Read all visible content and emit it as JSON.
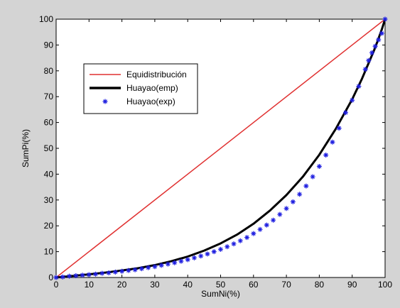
{
  "chart_data": {
    "type": "line",
    "title": "",
    "xlabel": "SumNi(%)",
    "ylabel": "SumPi(%)",
    "xlim": [
      0,
      100
    ],
    "ylim": [
      0,
      100
    ],
    "xticks": [
      "0",
      "10",
      "20",
      "30",
      "40",
      "50",
      "60",
      "70",
      "80",
      "90",
      "100"
    ],
    "yticks": [
      "0",
      "10",
      "20",
      "30",
      "40",
      "50",
      "60",
      "70",
      "80",
      "90",
      "100"
    ],
    "grid": false,
    "legend_position": "top-left",
    "series": [
      {
        "name": "Equidistribución",
        "style": "line",
        "color": "#e03030",
        "x": [
          0,
          100
        ],
        "y": [
          0,
          100
        ]
      },
      {
        "name": "Huayao(emp)",
        "style": "thick-line",
        "color": "#000000",
        "x": [
          0,
          5,
          10,
          15,
          20,
          25,
          30,
          35,
          40,
          45,
          50,
          55,
          60,
          65,
          70,
          75,
          80,
          85,
          90,
          93,
          95,
          97,
          98,
          99,
          100
        ],
        "y": [
          0,
          0.6,
          1.2,
          1.9,
          2.7,
          3.6,
          4.8,
          6.3,
          8.1,
          10.4,
          13.2,
          16.6,
          20.8,
          25.9,
          31.9,
          39.0,
          47.5,
          57.5,
          69.0,
          77.0,
          83.0,
          89.0,
          92.5,
          96.0,
          100
        ]
      },
      {
        "name": "Huayao(exp)",
        "style": "markers",
        "color": "#1f1fe0",
        "marker": "star",
        "x": [
          0,
          2,
          4,
          6,
          8,
          10,
          12,
          14,
          16,
          18,
          20,
          22,
          24,
          26,
          28,
          30,
          32,
          34,
          36,
          38,
          40,
          42,
          44,
          46,
          48,
          50,
          52,
          54,
          56,
          58,
          60,
          62,
          64,
          66,
          68,
          70,
          72,
          74,
          76,
          78,
          80,
          82,
          84,
          86,
          88,
          90,
          92,
          94,
          95,
          96,
          97,
          98,
          99,
          100
        ],
        "y": [
          0,
          0.2,
          0.5,
          0.7,
          0.9,
          1.1,
          1.3,
          1.6,
          1.8,
          2.1,
          2.4,
          2.7,
          3.0,
          3.4,
          3.8,
          4.2,
          4.7,
          5.2,
          5.7,
          6.3,
          6.9,
          7.6,
          8.3,
          9.1,
          10.0,
          10.9,
          11.9,
          13.0,
          14.2,
          15.5,
          17.0,
          18.6,
          20.3,
          22.2,
          24.4,
          26.7,
          29.3,
          32.2,
          35.4,
          39.0,
          43.0,
          47.4,
          52.4,
          57.8,
          63.8,
          68.6,
          74.0,
          80.6,
          84.0,
          87.0,
          89.5,
          92.0,
          94.5,
          100
        ]
      }
    ]
  }
}
